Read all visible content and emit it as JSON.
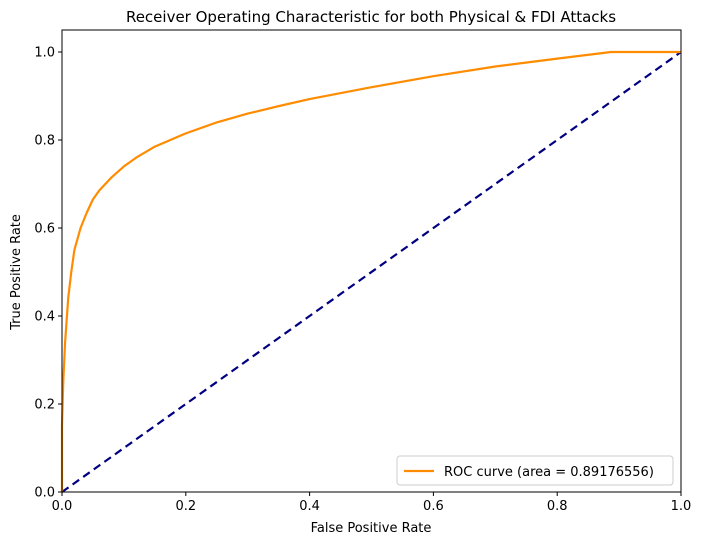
{
  "chart_data": {
    "type": "line",
    "title": "Receiver Operating Characteristic for both Physical & FDI Attacks",
    "xlabel": "False Positive Rate",
    "ylabel": "True Positive Rate",
    "xlim": [
      0.0,
      1.0
    ],
    "ylim": [
      0.0,
      1.05
    ],
    "xticks": [
      0.0,
      0.2,
      0.4,
      0.6,
      0.8,
      1.0
    ],
    "yticks": [
      0.0,
      0.2,
      0.4,
      0.6,
      0.8,
      1.0
    ],
    "xtick_labels": [
      "0.0",
      "0.2",
      "0.4",
      "0.6",
      "0.8",
      "1.0"
    ],
    "ytick_labels": [
      "0.0",
      "0.2",
      "0.4",
      "0.6",
      "0.8",
      "1.0"
    ],
    "grid": false,
    "legend_position": "lower-right",
    "series": [
      {
        "name": "ROC curve (area = 0.89176556)",
        "color": "#ff8c00",
        "style": "solid",
        "x": [
          0.0,
          0.0,
          0.002,
          0.005,
          0.01,
          0.015,
          0.02,
          0.03,
          0.04,
          0.05,
          0.06,
          0.08,
          0.1,
          0.12,
          0.15,
          0.2,
          0.25,
          0.3,
          0.35,
          0.4,
          0.5,
          0.6,
          0.7,
          0.8,
          0.887,
          0.95,
          1.0
        ],
        "y": [
          0.0,
          0.15,
          0.25,
          0.34,
          0.44,
          0.5,
          0.55,
          0.6,
          0.635,
          0.665,
          0.685,
          0.715,
          0.74,
          0.76,
          0.785,
          0.815,
          0.84,
          0.86,
          0.877,
          0.893,
          0.92,
          0.945,
          0.967,
          0.985,
          1.0,
          1.0,
          1.0
        ]
      },
      {
        "name": "",
        "color": "#000080",
        "style": "dashed",
        "x": [
          0.0,
          1.0
        ],
        "y": [
          0.0,
          1.0
        ]
      }
    ]
  }
}
